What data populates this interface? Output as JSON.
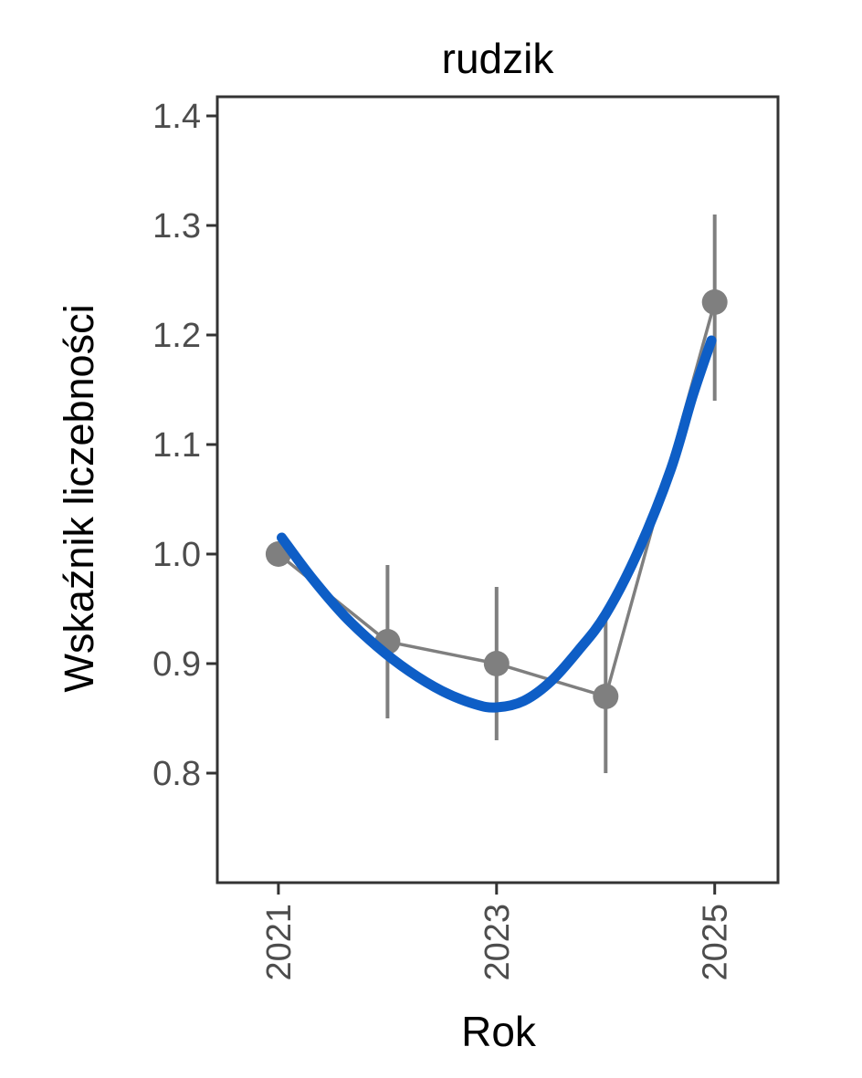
{
  "chart_data": {
    "type": "line",
    "title": "rudzik",
    "xlabel": "Rok",
    "ylabel": "Wskaźnik liczebności",
    "xlim": [
      2020.44,
      2025.58
    ],
    "ylim": [
      0.7,
      1.4175
    ],
    "x_ticks": [
      2021,
      2023,
      2025
    ],
    "x_tick_labels": [
      "2021",
      "2023",
      "2025"
    ],
    "y_ticks": [
      0.8,
      0.9,
      1.0,
      1.1,
      1.2,
      1.3,
      1.4
    ],
    "y_tick_labels": [
      "0.8",
      "0.9",
      "1.0",
      "1.1",
      "1.2",
      "1.3",
      "1.4"
    ],
    "grid": false,
    "legend": false,
    "series": [
      {
        "name": "observed-index",
        "type": "scatter+errorbar+line",
        "color": "#7f7f7f",
        "x": [
          2021,
          2022,
          2023,
          2024,
          2025
        ],
        "y": [
          1.0,
          0.92,
          0.9,
          0.87,
          1.23
        ],
        "ci_low": [
          null,
          0.85,
          0.83,
          0.8,
          1.14
        ],
        "ci_high": [
          null,
          0.99,
          0.97,
          0.94,
          1.31
        ]
      },
      {
        "name": "smoothed-trend",
        "type": "smooth",
        "color": "#0e5ec6",
        "x": [
          2021.03,
          2021.3,
          2021.6,
          2021.9,
          2022.2,
          2022.5,
          2022.8,
          2023.0,
          2023.25,
          2023.5,
          2023.75,
          2024.0,
          2024.3,
          2024.6,
          2024.8,
          2024.97
        ],
        "y": [
          1.015,
          0.979,
          0.944,
          0.916,
          0.893,
          0.875,
          0.863,
          0.86,
          0.866,
          0.884,
          0.912,
          0.945,
          1.003,
          1.078,
          1.145,
          1.195
        ]
      }
    ],
    "colors": {
      "point_gray": "#7f7f7f",
      "trend_blue": "#0e5ec6",
      "tick_label_gray": "#4d4d4d",
      "axis_dark": "#333333",
      "background": "#ffffff"
    }
  }
}
